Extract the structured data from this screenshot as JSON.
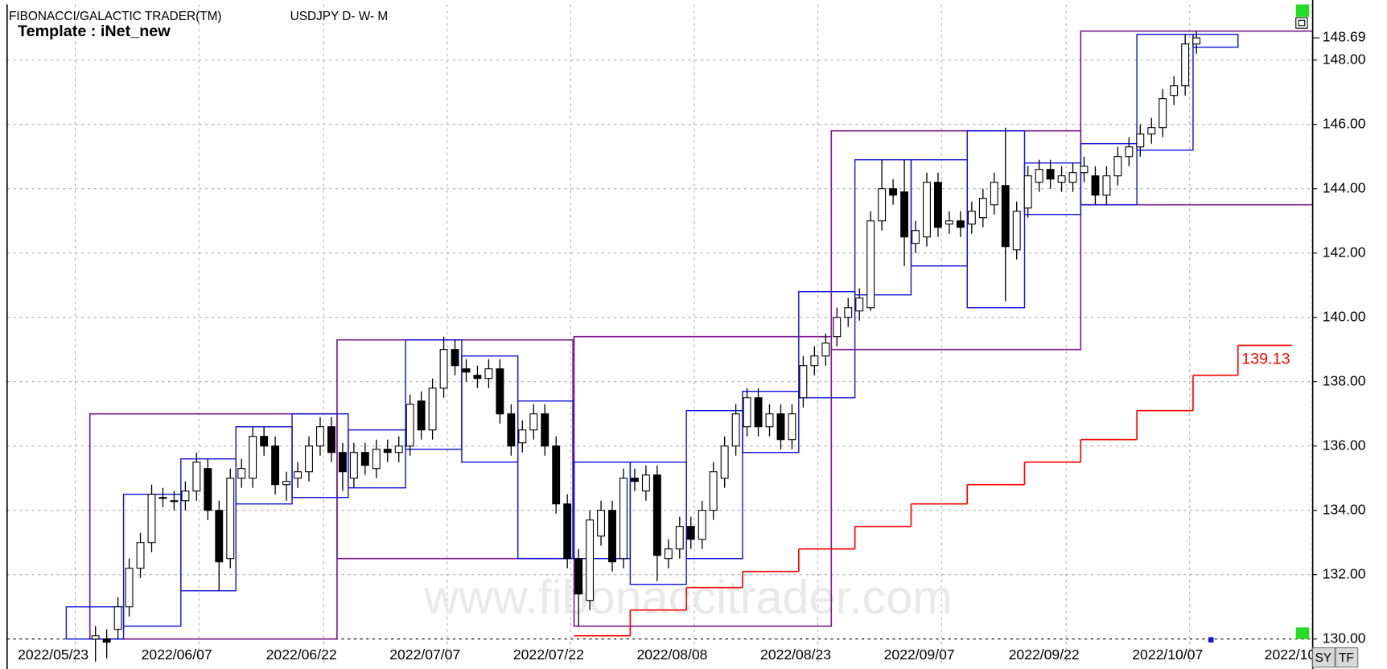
{
  "header": {
    "product": "FIBONACCI/GALACTIC TRADER(TM)",
    "symbol": "USDJPY D- W- M",
    "template": "Template : iNet_new"
  },
  "buttons": [
    "SY",
    "TF"
  ],
  "watermark": "www.fibonaccitrader.com",
  "chart_data": {
    "type": "candlestick",
    "xlim": [
      -7.87,
      108.35
    ],
    "xticks": [
      {
        "value": -1.8,
        "label": "2022/05/23"
      },
      {
        "value": 9.2,
        "label": "2022/06/07"
      },
      {
        "value": 20.3,
        "label": "2022/06/22"
      },
      {
        "value": 31.3,
        "label": "2022/07/07"
      },
      {
        "value": 42.3,
        "label": "2022/07/22"
      },
      {
        "value": 53.3,
        "label": "2022/08/08"
      },
      {
        "value": 64.3,
        "label": "2022/08/23"
      },
      {
        "value": 75.3,
        "label": "2022/09/07"
      },
      {
        "value": 86.4,
        "label": "2022/09/22"
      },
      {
        "value": 97.4,
        "label": "2022/10/07"
      },
      {
        "value": 108.3,
        "label": "2022/10"
      }
    ],
    "ylim": [
      129.26,
      149.73
    ],
    "yticks": [
      {
        "value": 130,
        "label": "130.00"
      },
      {
        "value": 132,
        "label": "132.00"
      },
      {
        "value": 134,
        "label": "134.00"
      },
      {
        "value": 136,
        "label": "136.00"
      },
      {
        "value": 138,
        "label": "138.00"
      },
      {
        "value": 140,
        "label": "140.00"
      },
      {
        "value": 142,
        "label": "142.00"
      },
      {
        "value": 144,
        "label": "144.00"
      },
      {
        "value": 146,
        "label": "146.00"
      },
      {
        "value": 148,
        "label": "148.00"
      }
    ],
    "grid": true,
    "last_price": 148.69,
    "open": [
      130.0,
      130.0,
      130.3,
      131.0,
      132.2,
      133.0,
      134.4,
      134.3,
      134.3,
      134.6,
      135.3,
      134.0,
      132.5,
      135.0,
      135.0,
      136.3,
      136.0,
      134.8,
      135.0,
      135.2,
      136.0,
      136.6,
      135.8,
      135.0,
      135.8,
      135.3,
      135.9,
      135.8,
      136.0,
      137.4,
      136.5,
      137.8,
      139.0,
      138.4,
      138.2,
      138.1,
      138.4,
      137.0,
      136.1,
      136.5,
      137.0,
      136.0,
      134.2,
      132.5,
      131.2,
      133.2,
      134.0,
      132.5,
      135.0,
      134.6,
      135.1,
      132.5,
      132.8,
      133.5,
      133.1,
      134.0,
      135.0,
      136.0,
      136.6,
      137.5,
      136.6,
      137.0,
      136.2,
      137.5,
      138.5,
      138.8,
      139.4,
      140.0,
      140.2,
      140.3,
      143.0,
      144.0,
      143.9,
      142.3,
      142.5,
      144.2,
      142.9,
      143.0,
      142.9,
      143.1,
      143.5,
      144.1,
      142.1,
      143.4,
      144.2,
      144.6,
      144.2,
      144.2,
      144.5,
      144.4,
      143.8,
      144.4,
      145.0,
      145.3,
      145.7,
      145.9,
      146.9,
      147.2,
      148.5
    ],
    "high": [
      130.4,
      130.3,
      131.3,
      132.5,
      133.3,
      134.8,
      134.7,
      134.6,
      134.9,
      135.8,
      135.6,
      134.3,
      135.3,
      135.6,
      136.6,
      136.6,
      136.3,
      135.2,
      135.5,
      136.3,
      136.9,
      136.9,
      136.1,
      136.1,
      136.1,
      136.2,
      136.2,
      136.3,
      137.6,
      137.7,
      138.1,
      139.4,
      139.3,
      138.7,
      138.5,
      138.7,
      138.7,
      137.3,
      136.8,
      137.3,
      137.3,
      136.3,
      134.5,
      132.8,
      134.0,
      134.3,
      134.3,
      135.3,
      135.3,
      135.4,
      135.4,
      133.1,
      133.8,
      133.8,
      134.3,
      135.5,
      136.3,
      137.3,
      137.8,
      137.8,
      137.3,
      137.3,
      137.3,
      138.8,
      139.1,
      139.5,
      140.3,
      140.6,
      140.9,
      143.3,
      144.9,
      144.3,
      144.9,
      143.0,
      144.5,
      144.5,
      143.3,
      143.3,
      143.6,
      144.0,
      144.5,
      145.9,
      143.6,
      144.7,
      144.9,
      144.9,
      144.7,
      144.8,
      145.0,
      144.7,
      144.7,
      145.3,
      145.6,
      146.0,
      146.2,
      147.1,
      147.5,
      148.8,
      148.9
    ],
    "low": [
      129.3,
      129.4,
      130.0,
      130.7,
      131.9,
      132.7,
      134.1,
      134.0,
      134.0,
      134.3,
      133.7,
      131.5,
      132.2,
      134.7,
      134.7,
      135.7,
      134.5,
      134.3,
      134.7,
      134.9,
      135.7,
      135.5,
      134.6,
      134.7,
      135.1,
      135.0,
      135.5,
      135.5,
      135.7,
      136.2,
      136.2,
      137.5,
      138.2,
      138.0,
      137.8,
      137.8,
      136.7,
      135.7,
      135.8,
      136.2,
      135.7,
      133.9,
      132.2,
      130.4,
      130.9,
      132.9,
      132.1,
      132.2,
      134.6,
      134.3,
      131.8,
      132.2,
      132.5,
      132.8,
      132.8,
      133.7,
      134.7,
      135.7,
      136.3,
      136.3,
      136.3,
      135.9,
      135.9,
      137.2,
      138.2,
      138.5,
      139.1,
      139.7,
      139.9,
      140.2,
      142.7,
      143.5,
      141.6,
      142.0,
      142.2,
      142.5,
      142.6,
      142.5,
      142.6,
      142.8,
      143.2,
      140.5,
      141.8,
      143.1,
      143.9,
      144.0,
      143.9,
      143.9,
      144.2,
      143.5,
      143.5,
      144.1,
      144.7,
      145.0,
      145.4,
      145.6,
      146.6,
      146.9,
      148.2
    ],
    "close": [
      130.1,
      129.9,
      131.0,
      132.2,
      133.0,
      134.5,
      134.4,
      134.3,
      134.6,
      135.5,
      134.0,
      132.4,
      135.0,
      135.3,
      136.3,
      136.0,
      134.8,
      134.9,
      135.2,
      136.0,
      136.6,
      135.8,
      135.2,
      135.8,
      135.4,
      135.9,
      135.8,
      136.0,
      137.3,
      136.5,
      137.8,
      139.0,
      138.5,
      138.3,
      138.1,
      138.4,
      137.0,
      136.0,
      136.5,
      137.0,
      136.0,
      134.2,
      132.5,
      131.4,
      133.7,
      134.0,
      132.4,
      135.0,
      134.9,
      135.1,
      132.6,
      132.8,
      133.5,
      133.1,
      134.0,
      135.2,
      136.0,
      137.0,
      137.5,
      136.6,
      137.0,
      136.2,
      137.0,
      138.5,
      138.8,
      139.2,
      140.0,
      140.3,
      140.6,
      143.0,
      144.0,
      143.8,
      142.5,
      142.7,
      144.2,
      142.8,
      143.0,
      142.8,
      143.3,
      143.7,
      144.2,
      142.2,
      143.3,
      144.4,
      144.6,
      144.3,
      144.4,
      144.5,
      144.7,
      143.8,
      144.4,
      145.0,
      145.3,
      145.7,
      145.9,
      146.8,
      147.2,
      148.5,
      148.69
    ],
    "up_color": "#ffffff",
    "down_color": "#000000",
    "candle_edge": "#000000",
    "monthly_boxes": {
      "color": "#7b1f8c",
      "boxes": [
        {
          "x0": -0.5,
          "x1": 21.5,
          "high": 137.0,
          "low": 130.0
        },
        {
          "x0": 21.5,
          "x1": 42.5,
          "high": 139.3,
          "low": 132.5
        },
        {
          "x0": 42.6,
          "x1": 65.5,
          "high": 139.4,
          "low": 130.4
        },
        {
          "x0": 65.5,
          "x1": 87.7,
          "high": 145.8,
          "low": 139.0
        },
        {
          "x0": 87.7,
          "x1": 108.35,
          "high": 148.9,
          "low": 143.5
        }
      ]
    },
    "weekly_boxes": {
      "color": "#1414dc",
      "boxes": [
        {
          "x0": -2.6,
          "x1": 2.5,
          "high": 131.0,
          "low": 130.0
        },
        {
          "x0": 2.5,
          "x1": 7.6,
          "high": 134.5,
          "low": 130.4
        },
        {
          "x0": 7.6,
          "x1": 12.5,
          "high": 135.6,
          "low": 131.5
        },
        {
          "x0": 12.5,
          "x1": 17.5,
          "high": 136.6,
          "low": 134.2
        },
        {
          "x0": 17.5,
          "x1": 22.5,
          "high": 137.0,
          "low": 134.4
        },
        {
          "x0": 22.5,
          "x1": 27.6,
          "high": 136.5,
          "low": 134.7
        },
        {
          "x0": 27.6,
          "x1": 32.6,
          "high": 139.3,
          "low": 135.9
        },
        {
          "x0": 32.6,
          "x1": 37.6,
          "high": 138.8,
          "low": 135.5
        },
        {
          "x0": 37.6,
          "x1": 42.5,
          "high": 137.4,
          "low": 132.5
        },
        {
          "x0": 42.6,
          "x1": 47.6,
          "high": 135.5,
          "low": 132.5
        },
        {
          "x0": 47.6,
          "x1": 52.6,
          "high": 135.5,
          "low": 131.7
        },
        {
          "x0": 52.6,
          "x1": 57.6,
          "high": 137.1,
          "low": 132.5
        },
        {
          "x0": 57.6,
          "x1": 62.6,
          "high": 137.7,
          "low": 135.8
        },
        {
          "x0": 62.6,
          "x1": 67.6,
          "high": 140.8,
          "low": 137.5
        },
        {
          "x0": 67.6,
          "x1": 72.6,
          "high": 144.9,
          "low": 140.7
        },
        {
          "x0": 72.6,
          "x1": 77.6,
          "high": 144.9,
          "low": 141.6
        },
        {
          "x0": 77.6,
          "x1": 82.7,
          "high": 145.8,
          "low": 140.3
        },
        {
          "x0": 82.7,
          "x1": 87.7,
          "high": 144.8,
          "low": 143.2
        },
        {
          "x0": 87.7,
          "x1": 92.7,
          "high": 145.4,
          "low": 143.5
        },
        {
          "x0": 92.7,
          "x1": 97.7,
          "high": 148.8,
          "low": 145.2
        },
        {
          "x0": 97.7,
          "x1": 101.7,
          "high": 148.8,
          "low": 148.4
        }
      ]
    },
    "support_line": {
      "color": "#ff0000",
      "edges": [
        42.6,
        47.6,
        52.6,
        57.6,
        62.6,
        67.6,
        72.6,
        77.6,
        82.7,
        87.7,
        92.7,
        97.7,
        101.7,
        106.5
      ],
      "values": [
        130.1,
        130.9,
        131.6,
        132.1,
        132.8,
        133.5,
        134.2,
        134.8,
        135.5,
        136.2,
        137.1,
        138.2,
        139.13
      ]
    }
  }
}
